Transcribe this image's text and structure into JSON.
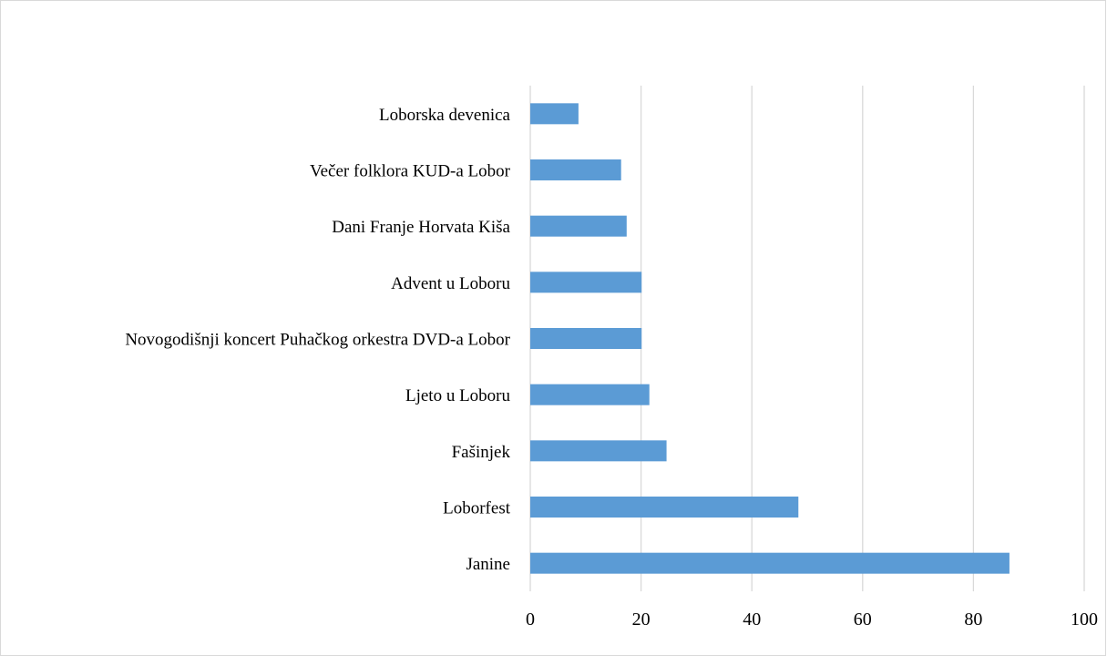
{
  "chart_data": {
    "type": "bar",
    "orientation": "horizontal",
    "categories": [
      "Janine",
      "Loborfest",
      "Fašinjek",
      "Ljeto u Loboru",
      "Novogodišnji koncert Puhačkog orkestra DVD-a Lobor",
      "Advent u Loboru",
      "Dani Franje Horvata Kiša",
      "Večer folklora KUD-a Lobor",
      "Loborska devenica"
    ],
    "values": [
      86.5,
      48.4,
      24.6,
      21.5,
      20.1,
      20.1,
      17.4,
      16.4,
      8.7
    ],
    "xlim": [
      0,
      100
    ],
    "xticks": [
      "0",
      "20",
      "40",
      "60",
      "80",
      "100"
    ],
    "title": "",
    "xlabel": "",
    "ylabel": "",
    "grid": "vertical",
    "legend": "none",
    "bar_color": "#5b9bd5",
    "grid_color": "#d9d9d9"
  }
}
